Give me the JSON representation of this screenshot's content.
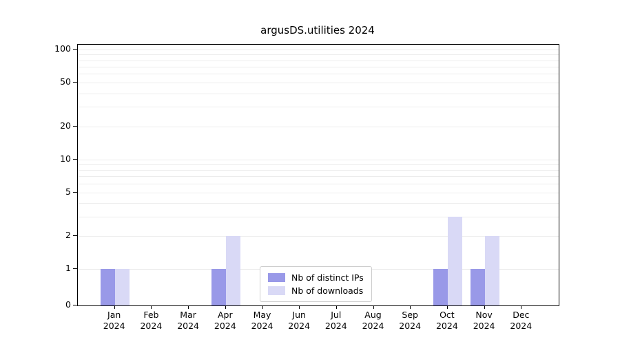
{
  "chart_data": {
    "type": "bar",
    "title": "argusDS.utilities 2024",
    "categories": [
      "Jan",
      "Feb",
      "Mar",
      "Apr",
      "May",
      "Jun",
      "Jul",
      "Aug",
      "Sep",
      "Oct",
      "Nov",
      "Dec"
    ],
    "year_label": "2024",
    "series": [
      {
        "name": "Nb of distinct IPs",
        "color": "#9999e8",
        "values": [
          1,
          0,
          0,
          1,
          0,
          0,
          0,
          0,
          0,
          1,
          1,
          0
        ]
      },
      {
        "name": "Nb of downloads",
        "color": "#d9d9f6",
        "values": [
          1,
          0,
          0,
          2,
          0,
          0,
          0,
          0,
          0,
          3,
          2,
          0
        ]
      }
    ],
    "yscale": "log",
    "yticks": [
      0,
      1,
      2,
      5,
      10,
      20,
      50,
      100
    ],
    "ylim": [
      0,
      100
    ],
    "grid": "horizontal-minor",
    "legend_position": "lower center"
  }
}
